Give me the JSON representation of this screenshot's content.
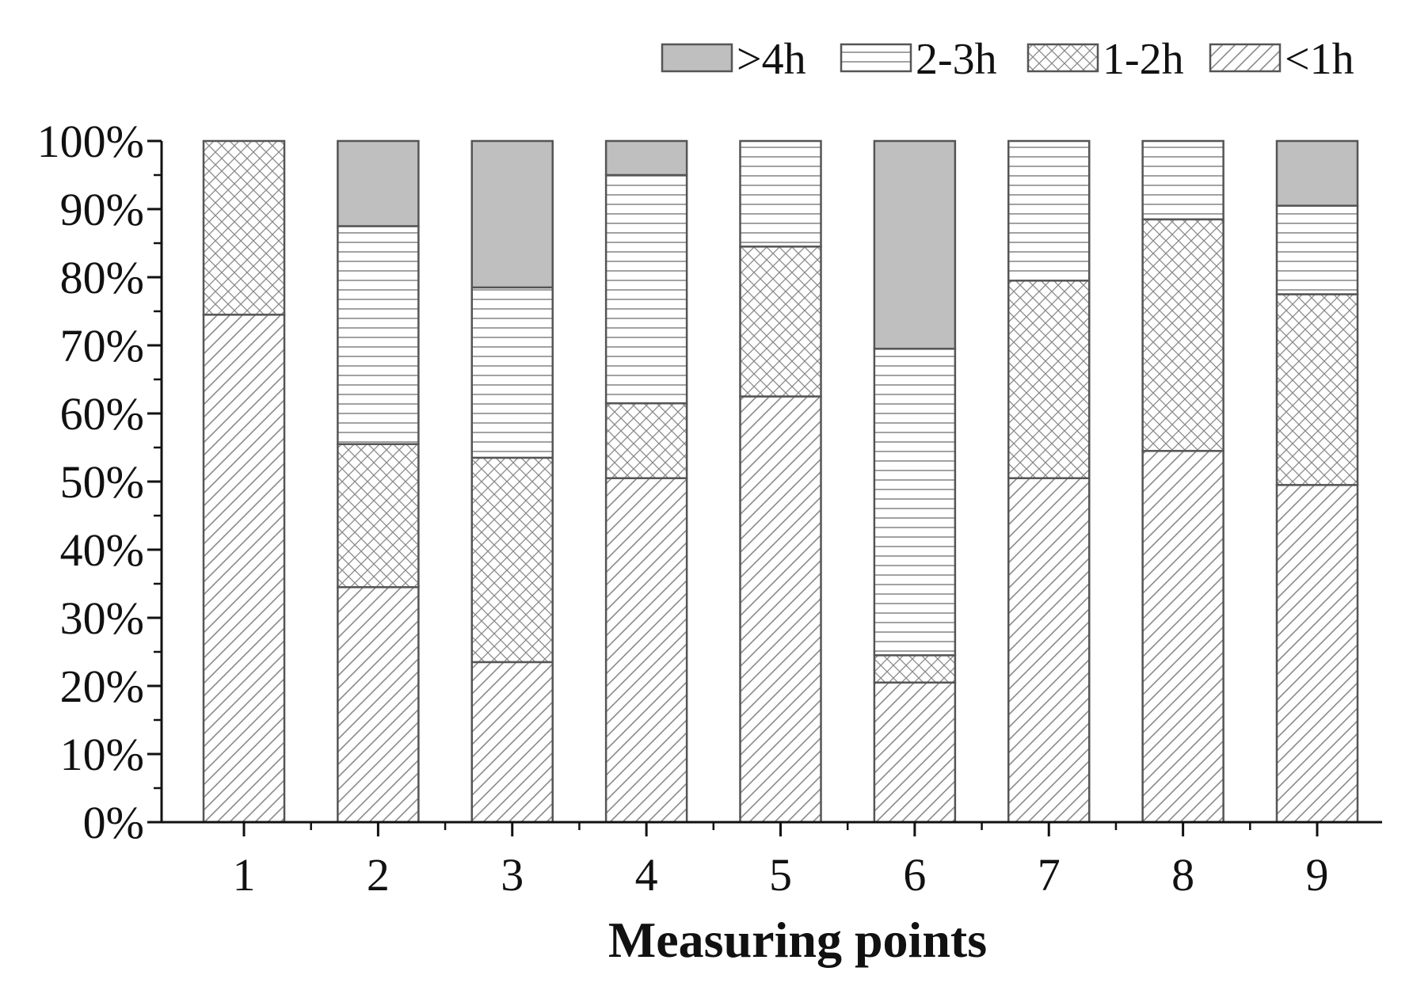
{
  "chart_data": {
    "type": "bar",
    "stacked": true,
    "normalized_percent": true,
    "xlabel": "Measuring points",
    "ylabel": "",
    "categories": [
      "1",
      "2",
      "3",
      "4",
      "5",
      "6",
      "7",
      "8",
      "9"
    ],
    "ylim": [
      0,
      100
    ],
    "yticks": [
      "0%",
      "10%",
      "20%",
      "30%",
      "40%",
      "50%",
      "60%",
      "70%",
      "80%",
      "90%",
      "100%"
    ],
    "grid": false,
    "legend_position": "top-right",
    "series": [
      {
        "name": "<1h",
        "pattern": "diagonal-hatch",
        "values": [
          74.5,
          34.5,
          23.5,
          50.5,
          62.5,
          20.5,
          50.5,
          54.5,
          49.5
        ]
      },
      {
        "name": "1-2h",
        "pattern": "cross-hatch",
        "values": [
          25.5,
          21.0,
          30.0,
          11.0,
          22.0,
          4.0,
          29.0,
          34.0,
          28.0
        ]
      },
      {
        "name": "2-3h",
        "pattern": "horizontal-lines",
        "values": [
          0.0,
          32.0,
          25.0,
          33.5,
          15.5,
          45.0,
          20.5,
          11.5,
          13.0
        ]
      },
      {
        "name": ">4h",
        "pattern": "solid-gray",
        "values": [
          0.0,
          12.5,
          21.5,
          5.0,
          0.0,
          30.5,
          0.0,
          0.0,
          9.5
        ]
      }
    ],
    "legend_order": [
      ">4h",
      "2-3h",
      "1-2h",
      "<1h"
    ],
    "colors": {
      "solid": "#bfbfbf",
      "stroke": "#555555",
      "hatch": "#8a8a8a",
      "axis": "#111111"
    }
  }
}
